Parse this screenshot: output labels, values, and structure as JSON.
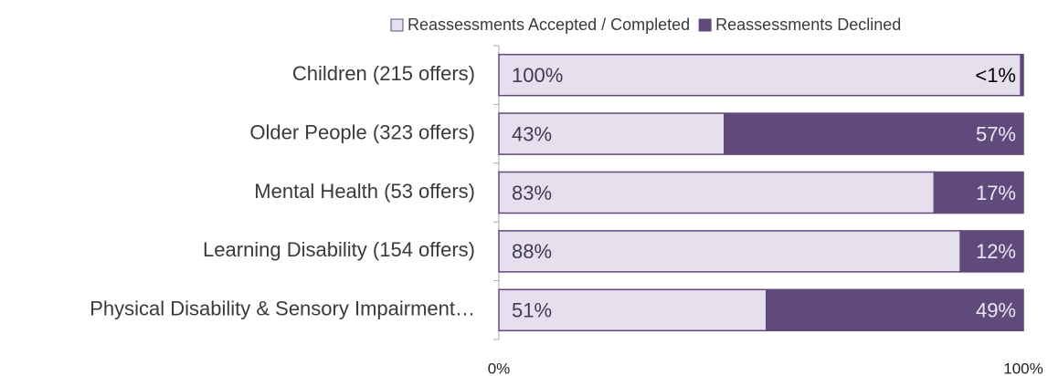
{
  "chart_data": {
    "type": "stacked_barh",
    "categories": [
      "Children (215 offers)",
      "Older People (323 offers)",
      "Mental Health (53 offers)",
      "Learning Disability (154 offers)",
      "Physical Disability & Sensory Impairment…"
    ],
    "series": [
      {
        "name": "Reassessments Accepted / Completed",
        "color": "#e6e0ee",
        "values": [
          99.5,
          43,
          83,
          88,
          51
        ],
        "value_labels": [
          "100%",
          "43%",
          "83%",
          "88%",
          "51%"
        ]
      },
      {
        "name": "Reassessments Declined",
        "color": "#604a7b",
        "values": [
          0.5,
          57,
          17,
          12,
          49
        ],
        "value_labels": [
          "<1%",
          "57%",
          "17%",
          "12%",
          "49%"
        ]
      }
    ],
    "xlim": [
      0,
      100
    ],
    "xticks": [
      {
        "value": 0,
        "label": "0%"
      },
      {
        "value": 100,
        "label": "100%"
      }
    ]
  }
}
